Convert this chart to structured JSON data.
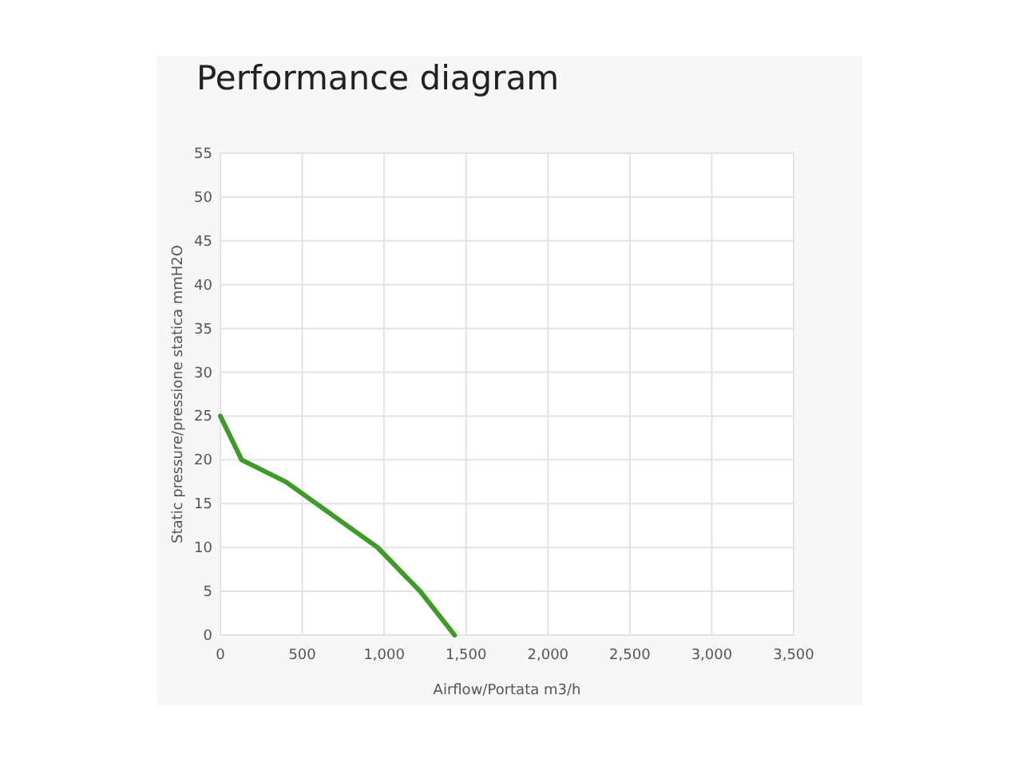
{
  "chart_data": {
    "type": "line",
    "title": "Performance diagram",
    "xlabel": "Airflow/Portata m3/h",
    "ylabel": "Static pressure/pressione statica mmH2O",
    "x": [
      0,
      130,
      400,
      960,
      1220,
      1430
    ],
    "series": [
      {
        "color": "#3f9a2a",
        "values": [
          25,
          20,
          17.5,
          10,
          5,
          0
        ]
      }
    ],
    "xlim": [
      0,
      3500
    ],
    "xticks": [
      0,
      500,
      {
        "value": 1000,
        "label": "1,000"
      },
      {
        "value": 1500,
        "label": "1,500"
      },
      {
        "value": 2000,
        "label": "2,000"
      },
      {
        "value": 2500,
        "label": "2,500"
      },
      {
        "value": 3000,
        "label": "3,000"
      },
      {
        "value": 3500,
        "label": "3,500"
      }
    ],
    "ylim": [
      0,
      55
    ],
    "yticks": [
      0,
      5,
      10,
      15,
      20,
      25,
      30,
      35,
      40,
      45,
      50,
      55
    ],
    "grid": true,
    "marker": "none",
    "line_style": "solid"
  }
}
